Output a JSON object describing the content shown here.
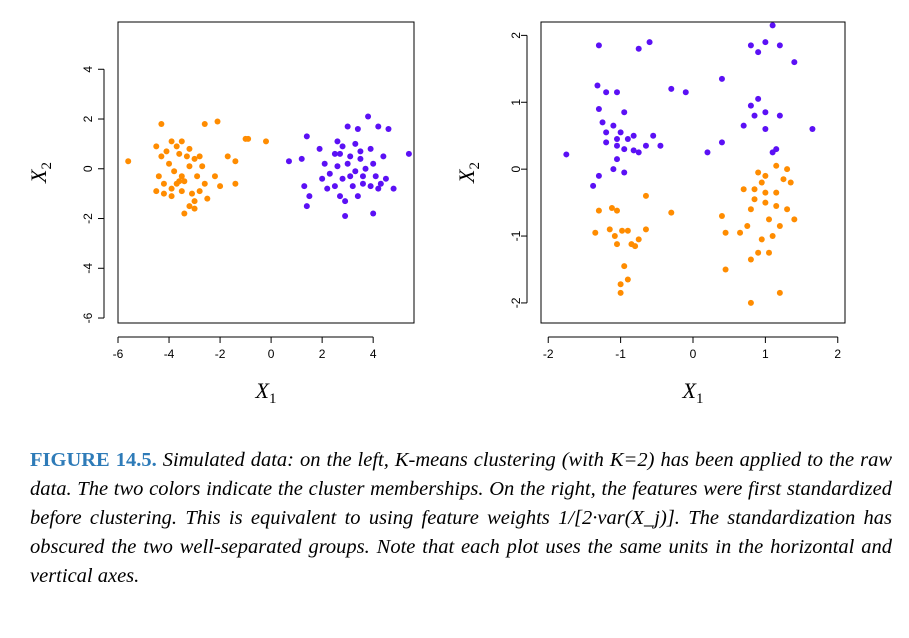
{
  "colors": {
    "cluster_orange": "#ff8c00",
    "cluster_purple": "#5b10f5",
    "caption_label": "#2e7bb8"
  },
  "caption": {
    "label": "FIGURE 14.5.",
    "text": "Simulated data: on the left, K-means clustering (with K=2) has been applied to the raw data. The two colors indicate the cluster memberships. On the right, the features were first standardized before clustering. This is equivalent to using feature weights 1/[2·var(X_j)]. The standardization has obscured the two well-separated groups. Note that each plot uses the same units in the horizontal and vertical axes."
  },
  "chart_data": [
    {
      "type": "scatter",
      "title": "",
      "xlabel": "X1",
      "ylabel": "X2",
      "xlim": [
        -6,
        5.6
      ],
      "ylim": [
        -6.2,
        5.9
      ],
      "xticks": [
        "-6",
        "-4",
        "-2",
        "0",
        "2",
        "4"
      ],
      "xtick_values": [
        -6,
        -4,
        -2,
        0,
        2,
        4
      ],
      "yticks": [
        "-6",
        "-4",
        "-2",
        "0",
        "2",
        "4"
      ],
      "ytick_values": [
        -6,
        -4,
        -2,
        0,
        2,
        4
      ],
      "series": [
        {
          "name": "cluster 1 (orange)",
          "color": "#ff8c00",
          "points": [
            [
              -5.6,
              0.3
            ],
            [
              -4.3,
              1.8
            ],
            [
              -4.5,
              0.9
            ],
            [
              -4.3,
              0.5
            ],
            [
              -4.1,
              0.7
            ],
            [
              -3.9,
              1.1
            ],
            [
              -3.7,
              0.9
            ],
            [
              -3.5,
              1.1
            ],
            [
              -3.6,
              0.6
            ],
            [
              -3.3,
              0.5
            ],
            [
              -3.2,
              0.8
            ],
            [
              -3.0,
              0.4
            ],
            [
              -2.8,
              0.5
            ],
            [
              -2.6,
              1.8
            ],
            [
              -2.1,
              1.9
            ],
            [
              -4.0,
              0.2
            ],
            [
              -3.8,
              -0.1
            ],
            [
              -3.5,
              -0.3
            ],
            [
              -3.2,
              0.1
            ],
            [
              -2.9,
              -0.3
            ],
            [
              -2.7,
              0.1
            ],
            [
              -4.4,
              -0.3
            ],
            [
              -4.2,
              -0.6
            ],
            [
              -3.9,
              -0.8
            ],
            [
              -3.7,
              -0.6
            ],
            [
              -3.5,
              -0.9
            ],
            [
              -3.4,
              -0.5
            ],
            [
              -3.1,
              -1.0
            ],
            [
              -2.8,
              -0.9
            ],
            [
              -2.6,
              -0.6
            ],
            [
              -4.5,
              -0.9
            ],
            [
              -4.2,
              -1.0
            ],
            [
              -3.9,
              -1.1
            ],
            [
              -3.6,
              -0.5
            ],
            [
              -3.0,
              -1.3
            ],
            [
              -3.2,
              -1.5
            ],
            [
              -3.0,
              -1.6
            ],
            [
              -2.5,
              -1.2
            ],
            [
              -3.4,
              -1.8
            ],
            [
              -2.2,
              -0.3
            ],
            [
              -2.0,
              -0.7
            ],
            [
              -1.7,
              0.5
            ],
            [
              -1.4,
              0.3
            ],
            [
              -1.4,
              -0.6
            ],
            [
              -1.0,
              1.2
            ],
            [
              -0.9,
              1.2
            ],
            [
              -0.2,
              1.1
            ]
          ]
        },
        {
          "name": "cluster 2 (purple)",
          "color": "#5b10f5",
          "points": [
            [
              0.7,
              0.3
            ],
            [
              1.4,
              1.3
            ],
            [
              1.2,
              0.4
            ],
            [
              1.9,
              0.8
            ],
            [
              2.1,
              0.2
            ],
            [
              2.5,
              0.6
            ],
            [
              2.6,
              1.1
            ],
            [
              2.8,
              0.9
            ],
            [
              3.0,
              1.7
            ],
            [
              3.3,
              1.0
            ],
            [
              3.5,
              0.4
            ],
            [
              3.8,
              2.1
            ],
            [
              4.2,
              1.7
            ],
            [
              4.6,
              1.6
            ],
            [
              5.4,
              0.6
            ],
            [
              1.3,
              -0.7
            ],
            [
              1.5,
              -1.1
            ],
            [
              1.4,
              -1.5
            ],
            [
              2.0,
              -0.4
            ],
            [
              2.2,
              -0.8
            ],
            [
              2.5,
              -0.7
            ],
            [
              2.7,
              -1.1
            ],
            [
              2.9,
              -1.3
            ],
            [
              2.9,
              -1.9
            ],
            [
              3.1,
              -0.3
            ],
            [
              3.2,
              -0.7
            ],
            [
              3.4,
              -1.1
            ],
            [
              3.6,
              -0.3
            ],
            [
              3.9,
              -0.7
            ],
            [
              4.1,
              -0.3
            ],
            [
              4.2,
              -0.8
            ],
            [
              4.5,
              -0.4
            ],
            [
              4.8,
              -0.8
            ],
            [
              4.0,
              -1.8
            ],
            [
              3.0,
              0.2
            ],
            [
              3.3,
              -0.1
            ],
            [
              3.7,
              0.0
            ],
            [
              2.6,
              0.1
            ],
            [
              2.3,
              -0.2
            ],
            [
              4.4,
              0.5
            ],
            [
              3.9,
              0.8
            ],
            [
              3.5,
              0.7
            ],
            [
              3.1,
              0.5
            ],
            [
              2.8,
              -0.4
            ],
            [
              3.6,
              -0.6
            ],
            [
              4.3,
              -0.6
            ],
            [
              4.0,
              0.2
            ],
            [
              3.4,
              1.6
            ],
            [
              2.7,
              0.6
            ]
          ]
        }
      ]
    },
    {
      "type": "scatter",
      "title": "",
      "xlabel": "X1",
      "ylabel": "X2",
      "xlim": [
        -2.1,
        2.1
      ],
      "ylim": [
        -2.3,
        2.2
      ],
      "xticks": [
        "-2",
        "-1",
        "0",
        "1",
        "2"
      ],
      "xtick_values": [
        -2,
        -1,
        0,
        1,
        2
      ],
      "yticks": [
        "-2",
        "-1",
        "0",
        "1",
        "2"
      ],
      "ytick_values": [
        -2,
        -1,
        0,
        1,
        2
      ],
      "series": [
        {
          "name": "cluster 1 (purple)",
          "color": "#5b10f5",
          "points": [
            [
              -1.75,
              0.22
            ],
            [
              -1.3,
              1.85
            ],
            [
              -1.32,
              1.25
            ],
            [
              -1.2,
              1.15
            ],
            [
              -1.05,
              1.15
            ],
            [
              -1.3,
              0.9
            ],
            [
              -1.25,
              0.7
            ],
            [
              -1.1,
              0.65
            ],
            [
              -1.0,
              0.55
            ],
            [
              -0.9,
              0.45
            ],
            [
              -1.2,
              0.4
            ],
            [
              -1.05,
              0.35
            ],
            [
              -0.95,
              0.3
            ],
            [
              -1.05,
              0.15
            ],
            [
              -0.82,
              0.28
            ],
            [
              -1.1,
              0.0
            ],
            [
              -0.95,
              -0.05
            ],
            [
              -1.3,
              -0.1
            ],
            [
              -1.38,
              -0.25
            ],
            [
              -0.82,
              0.5
            ],
            [
              -0.6,
              1.9
            ],
            [
              -0.75,
              1.8
            ],
            [
              -0.55,
              0.5
            ],
            [
              -0.45,
              0.35
            ],
            [
              -0.3,
              1.2
            ],
            [
              -0.1,
              1.15
            ],
            [
              0.2,
              0.25
            ],
            [
              0.4,
              0.4
            ],
            [
              0.4,
              1.35
            ],
            [
              0.8,
              1.85
            ],
            [
              0.9,
              1.75
            ],
            [
              1.0,
              1.9
            ],
            [
              1.2,
              1.85
            ],
            [
              1.1,
              2.15
            ],
            [
              1.4,
              1.6
            ],
            [
              0.8,
              0.95
            ],
            [
              0.9,
              1.05
            ],
            [
              1.0,
              0.85
            ],
            [
              0.85,
              0.8
            ],
            [
              1.2,
              0.8
            ],
            [
              1.0,
              0.6
            ],
            [
              0.7,
              0.65
            ],
            [
              1.15,
              0.3
            ],
            [
              1.1,
              0.25
            ],
            [
              1.65,
              0.6
            ],
            [
              -1.05,
              0.45
            ],
            [
              -0.65,
              0.35
            ],
            [
              -0.75,
              0.25
            ],
            [
              -0.95,
              0.85
            ],
            [
              -1.2,
              0.55
            ]
          ]
        },
        {
          "name": "cluster 2 (orange)",
          "color": "#ff8c00",
          "points": [
            [
              -1.3,
              -0.62
            ],
            [
              -1.12,
              -0.58
            ],
            [
              -1.05,
              -0.62
            ],
            [
              -1.35,
              -0.95
            ],
            [
              -1.15,
              -0.9
            ],
            [
              -1.08,
              -1.0
            ],
            [
              -1.05,
              -1.12
            ],
            [
              -0.98,
              -0.92
            ],
            [
              -0.9,
              -0.92
            ],
            [
              -0.85,
              -1.12
            ],
            [
              -0.8,
              -1.15
            ],
            [
              -0.75,
              -1.05
            ],
            [
              -0.65,
              -0.9
            ],
            [
              -0.65,
              -0.4
            ],
            [
              -0.3,
              -0.65
            ],
            [
              -0.95,
              -1.45
            ],
            [
              -0.9,
              -1.65
            ],
            [
              -1.0,
              -1.72
            ],
            [
              -1.0,
              -1.85
            ],
            [
              0.4,
              -0.7
            ],
            [
              0.45,
              -0.95
            ],
            [
              0.45,
              -1.5
            ],
            [
              0.7,
              -0.3
            ],
            [
              0.75,
              -0.85
            ],
            [
              0.8,
              -0.6
            ],
            [
              0.85,
              -0.45
            ],
            [
              0.9,
              -1.25
            ],
            [
              0.95,
              -1.05
            ],
            [
              1.0,
              -0.5
            ],
            [
              1.05,
              -0.75
            ],
            [
              1.1,
              -1.0
            ],
            [
              1.15,
              -0.55
            ],
            [
              1.2,
              -0.85
            ],
            [
              1.3,
              -0.6
            ],
            [
              1.35,
              -0.2
            ],
            [
              1.4,
              -0.75
            ],
            [
              0.8,
              -2.0
            ],
            [
              1.2,
              -1.85
            ],
            [
              0.9,
              -0.05
            ],
            [
              1.0,
              -0.1
            ],
            [
              1.15,
              0.05
            ],
            [
              1.25,
              -0.15
            ],
            [
              1.3,
              0.0
            ],
            [
              0.85,
              -0.3
            ],
            [
              1.0,
              -0.35
            ],
            [
              0.95,
              -0.2
            ],
            [
              0.8,
              -1.35
            ],
            [
              0.65,
              -0.95
            ],
            [
              1.15,
              -0.35
            ],
            [
              1.05,
              -1.25
            ]
          ]
        }
      ]
    }
  ]
}
